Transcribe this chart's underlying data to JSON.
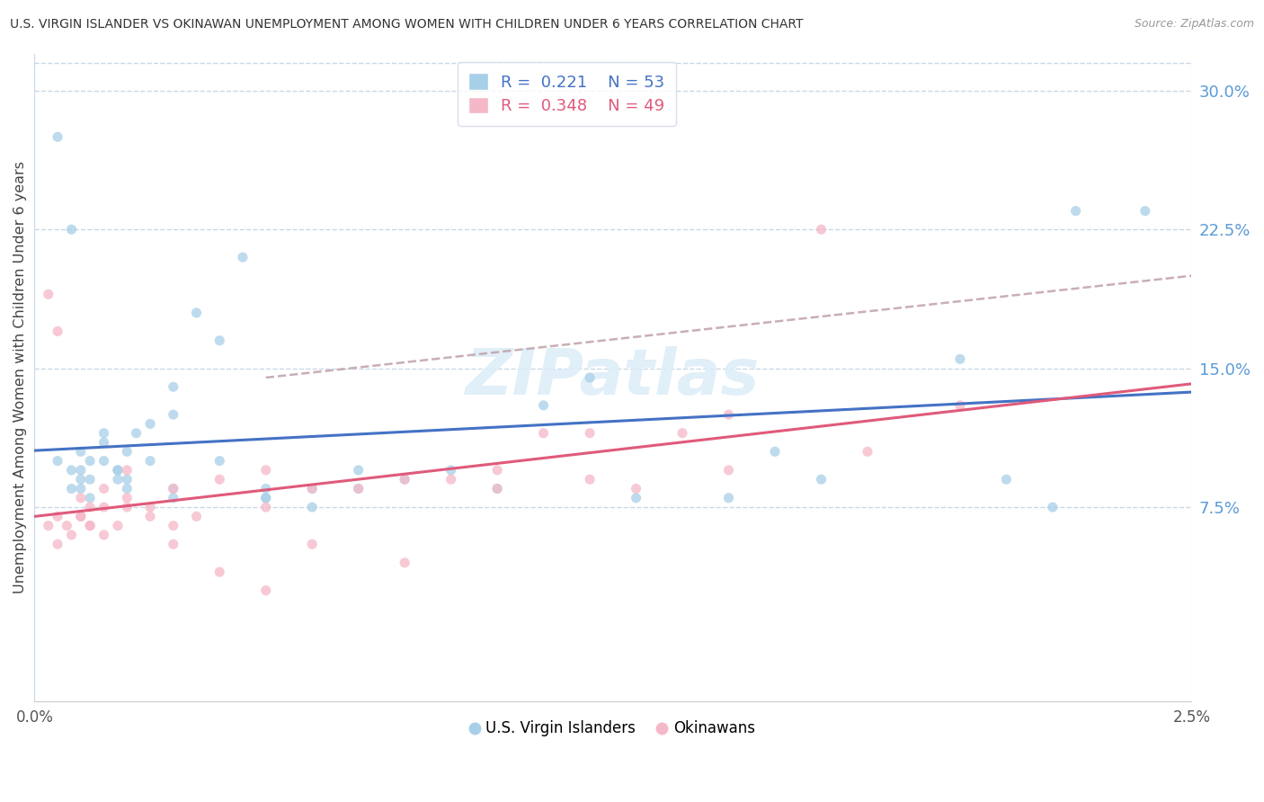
{
  "title": "U.S. VIRGIN ISLANDER VS OKINAWAN UNEMPLOYMENT AMONG WOMEN WITH CHILDREN UNDER 6 YEARS CORRELATION CHART",
  "source": "Source: ZipAtlas.com",
  "ylabel": "Unemployment Among Women with Children Under 6 years",
  "color_blue": "#a8cfe8",
  "color_pink": "#f5b8c8",
  "color_blue_line": "#4472c4",
  "color_pink_line": "#e05a7a",
  "color_dashed_line": "#c0a0a8",
  "color_ytick": "#5b9bd5",
  "color_grid": "#c8d8e8",
  "R1": 0.221,
  "N1": 53,
  "R2": 0.348,
  "N2": 49,
  "xlim": [
    0.0,
    0.025
  ],
  "ylim": [
    -0.03,
    0.32
  ],
  "yticks": [
    0.075,
    0.15,
    0.225,
    0.3
  ],
  "xticks": [
    0.0,
    0.025
  ],
  "legend_R1_color": "#4472c4",
  "legend_R2_color": "#e05a7a",
  "vi_x": [
    0.0005,
    0.001,
    0.0008,
    0.0015,
    0.001,
    0.0012,
    0.0008,
    0.0015,
    0.0018,
    0.001,
    0.0012,
    0.0015,
    0.002,
    0.0018,
    0.0025,
    0.002,
    0.0022,
    0.003,
    0.003,
    0.0025,
    0.0035,
    0.003,
    0.004,
    0.004,
    0.0045,
    0.005,
    0.005,
    0.006,
    0.006,
    0.007,
    0.008,
    0.009,
    0.01,
    0.011,
    0.012,
    0.013,
    0.015,
    0.016,
    0.017,
    0.02,
    0.021,
    0.022,
    0.0225,
    0.024,
    0.0005,
    0.0008,
    0.001,
    0.0012,
    0.0018,
    0.002,
    0.003,
    0.005,
    0.007
  ],
  "vi_y": [
    0.1,
    0.105,
    0.095,
    0.115,
    0.09,
    0.1,
    0.085,
    0.11,
    0.095,
    0.085,
    0.09,
    0.1,
    0.09,
    0.095,
    0.12,
    0.105,
    0.115,
    0.125,
    0.14,
    0.1,
    0.18,
    0.085,
    0.165,
    0.1,
    0.21,
    0.085,
    0.08,
    0.085,
    0.075,
    0.085,
    0.09,
    0.095,
    0.085,
    0.13,
    0.145,
    0.08,
    0.08,
    0.105,
    0.09,
    0.155,
    0.09,
    0.075,
    0.235,
    0.235,
    0.275,
    0.225,
    0.095,
    0.08,
    0.09,
    0.085,
    0.08,
    0.08,
    0.095
  ],
  "ok_x": [
    0.0003,
    0.0005,
    0.0005,
    0.0007,
    0.001,
    0.001,
    0.0012,
    0.0012,
    0.0015,
    0.0015,
    0.0018,
    0.002,
    0.002,
    0.0025,
    0.003,
    0.003,
    0.0035,
    0.004,
    0.005,
    0.005,
    0.006,
    0.007,
    0.008,
    0.009,
    0.01,
    0.011,
    0.012,
    0.013,
    0.014,
    0.015,
    0.017,
    0.0003,
    0.0005,
    0.0008,
    0.001,
    0.0012,
    0.0015,
    0.002,
    0.0025,
    0.003,
    0.004,
    0.005,
    0.006,
    0.008,
    0.01,
    0.012,
    0.015,
    0.018,
    0.02
  ],
  "ok_y": [
    0.19,
    0.17,
    0.07,
    0.065,
    0.08,
    0.07,
    0.075,
    0.065,
    0.085,
    0.075,
    0.065,
    0.095,
    0.075,
    0.075,
    0.085,
    0.065,
    0.07,
    0.09,
    0.095,
    0.075,
    0.085,
    0.085,
    0.09,
    0.09,
    0.085,
    0.115,
    0.09,
    0.085,
    0.115,
    0.095,
    0.225,
    0.065,
    0.055,
    0.06,
    0.07,
    0.065,
    0.06,
    0.08,
    0.07,
    0.055,
    0.04,
    0.03,
    0.055,
    0.045,
    0.095,
    0.115,
    0.125,
    0.105,
    0.13
  ],
  "dashed_line_x": [
    0.005,
    0.025
  ],
  "dashed_line_y": [
    0.145,
    0.2
  ]
}
